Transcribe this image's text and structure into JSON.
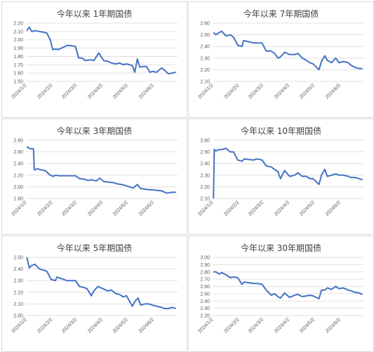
{
  "chart_data": [
    {
      "type": "line",
      "title": "今年以来 1年期国债",
      "x_tick_labels": [
        "2024/1/2",
        "2024/2/2",
        "2024/3/2",
        "2024/4/2",
        "2024/5/2",
        "2024/6/2"
      ],
      "y_tick_labels": [
        "1.50",
        "1.60",
        "1.70",
        "1.80",
        "1.90",
        "2.00",
        "2.10",
        "2.20"
      ],
      "ylim": [
        1.5,
        2.2
      ],
      "xlim": [
        "2024-01-01",
        "2024-06-30"
      ],
      "grid": true,
      "color": "#4472c4",
      "series": [
        {
          "x": [
            "2024-01-02",
            "2024-01-05",
            "2024-01-08",
            "2024-01-12",
            "2024-01-17",
            "2024-01-22",
            "2024-01-26",
            "2024-01-30",
            "2024-02-02",
            "2024-02-06",
            "2024-02-08",
            "2024-02-19",
            "2024-02-23",
            "2024-02-29",
            "2024-03-04",
            "2024-03-08",
            "2024-03-12",
            "2024-03-18",
            "2024-03-22",
            "2024-03-28",
            "2024-04-03",
            "2024-04-08",
            "2024-04-12",
            "2024-04-17",
            "2024-04-22",
            "2024-04-26",
            "2024-04-30",
            "2024-05-07",
            "2024-05-10",
            "2024-05-13",
            "2024-05-16",
            "2024-05-20",
            "2024-05-24",
            "2024-05-28",
            "2024-05-31",
            "2024-06-05",
            "2024-06-11",
            "2024-06-14",
            "2024-06-19",
            "2024-06-24",
            "2024-06-28"
          ],
          "y": [
            2.11,
            2.15,
            2.1,
            2.11,
            2.1,
            2.09,
            2.08,
            2.0,
            1.88,
            1.89,
            1.88,
            1.93,
            1.93,
            1.92,
            1.78,
            1.78,
            1.75,
            1.76,
            1.75,
            1.84,
            1.75,
            1.74,
            1.72,
            1.71,
            1.72,
            1.7,
            1.71,
            1.69,
            1.61,
            1.77,
            1.67,
            1.68,
            1.68,
            1.61,
            1.62,
            1.61,
            1.66,
            1.64,
            1.59,
            1.6,
            1.61
          ]
        }
      ]
    },
    {
      "type": "line",
      "title": "今年以来 7年期国债",
      "x_tick_labels": [
        "2024/1/2",
        "2024/2/2",
        "2024/3/2",
        "2024/4/2",
        "2024/5/2",
        "2024/6/2"
      ],
      "y_tick_labels": [
        "2.10",
        "2.20",
        "2.30",
        "2.40",
        "2.50",
        "2.60"
      ],
      "ylim": [
        2.1,
        2.6
      ],
      "xlim": [
        "2024-01-01",
        "2024-06-30"
      ],
      "grid": true,
      "color": "#4472c4",
      "series": [
        {
          "x": [
            "2024-01-02",
            "2024-01-05",
            "2024-01-09",
            "2024-01-12",
            "2024-01-17",
            "2024-01-22",
            "2024-01-26",
            "2024-01-31",
            "2024-02-05",
            "2024-02-07",
            "2024-02-19",
            "2024-02-23",
            "2024-02-29",
            "2024-03-05",
            "2024-03-11",
            "2024-03-15",
            "2024-03-19",
            "2024-03-22",
            "2024-03-27",
            "2024-04-02",
            "2024-04-08",
            "2024-04-12",
            "2024-04-17",
            "2024-04-22",
            "2024-04-26",
            "2024-04-30",
            "2024-05-07",
            "2024-05-10",
            "2024-05-14",
            "2024-05-17",
            "2024-05-22",
            "2024-05-27",
            "2024-05-31",
            "2024-06-05",
            "2024-06-11",
            "2024-06-14",
            "2024-06-19",
            "2024-06-24",
            "2024-06-28"
          ],
          "y": [
            2.52,
            2.5,
            2.52,
            2.53,
            2.49,
            2.5,
            2.48,
            2.41,
            2.4,
            2.45,
            2.43,
            2.43,
            2.43,
            2.36,
            2.36,
            2.34,
            2.3,
            2.31,
            2.35,
            2.33,
            2.33,
            2.34,
            2.3,
            2.28,
            2.26,
            2.25,
            2.2,
            2.27,
            2.32,
            2.28,
            2.26,
            2.3,
            2.26,
            2.27,
            2.26,
            2.24,
            2.22,
            2.21,
            2.21
          ]
        }
      ]
    },
    {
      "type": "line",
      "title": "今年以来 3年期国债",
      "x_tick_labels": [
        "2024/1/2",
        "2024/2/2",
        "2024/3/2",
        "2024/4/2",
        "2024/5/2",
        "2024/6/2"
      ],
      "y_tick_labels": [
        "1.80",
        "2.00",
        "2.20",
        "2.40",
        "2.60",
        "2.80"
      ],
      "ylim": [
        1.8,
        2.8
      ],
      "xlim": [
        "2024-01-01",
        "2024-06-30"
      ],
      "grid": true,
      "color": "#4472c4",
      "series": [
        {
          "x": [
            "2024-01-02",
            "2024-01-05",
            "2024-01-10",
            "2024-01-11",
            "2024-01-15",
            "2024-01-19",
            "2024-01-24",
            "2024-01-29",
            "2024-02-02",
            "2024-02-06",
            "2024-02-09",
            "2024-02-19",
            "2024-02-23",
            "2024-02-29",
            "2024-03-05",
            "2024-03-11",
            "2024-03-15",
            "2024-03-20",
            "2024-03-25",
            "2024-03-29",
            "2024-04-03",
            "2024-04-09",
            "2024-04-15",
            "2024-04-19",
            "2024-04-24",
            "2024-04-29",
            "2024-05-08",
            "2024-05-13",
            "2024-05-17",
            "2024-05-22",
            "2024-05-27",
            "2024-05-31",
            "2024-06-05",
            "2024-06-11",
            "2024-06-17",
            "2024-06-21",
            "2024-06-26",
            "2024-06-28"
          ],
          "y": [
            2.69,
            2.66,
            2.65,
            2.29,
            2.31,
            2.29,
            2.28,
            2.21,
            2.18,
            2.2,
            2.19,
            2.19,
            2.19,
            2.19,
            2.14,
            2.13,
            2.11,
            2.12,
            2.1,
            2.15,
            2.09,
            2.08,
            2.07,
            2.05,
            2.04,
            2.02,
            1.98,
            2.04,
            1.97,
            1.96,
            1.95,
            1.95,
            1.94,
            1.93,
            1.89,
            1.9,
            1.91,
            1.9
          ]
        }
      ]
    },
    {
      "type": "line",
      "title": "今年以来 10年期国债",
      "x_tick_labels": [
        "2024/1/2",
        "2024/2/2",
        "2024/3/2",
        "2024/4/2",
        "2024/5/2",
        "2024/6/2"
      ],
      "y_tick_labels": [
        "2.10",
        "2.20",
        "2.30",
        "2.40",
        "2.50",
        "2.60"
      ],
      "ylim": [
        2.1,
        2.6
      ],
      "xlim": [
        "2024-01-01",
        "2024-06-30"
      ],
      "grid": true,
      "color": "#4472c4",
      "series": [
        {
          "x": [
            "2024-01-02",
            "2024-01-03",
            "2024-01-05",
            "2024-01-09",
            "2024-01-12",
            "2024-01-17",
            "2024-01-22",
            "2024-01-26",
            "2024-01-31",
            "2024-02-05",
            "2024-02-08",
            "2024-02-19",
            "2024-02-23",
            "2024-02-29",
            "2024-03-05",
            "2024-03-11",
            "2024-03-15",
            "2024-03-19",
            "2024-03-22",
            "2024-03-27",
            "2024-04-02",
            "2024-04-08",
            "2024-04-12",
            "2024-04-17",
            "2024-04-22",
            "2024-04-26",
            "2024-04-30",
            "2024-05-07",
            "2024-05-10",
            "2024-05-14",
            "2024-05-17",
            "2024-05-22",
            "2024-05-27",
            "2024-05-31",
            "2024-06-05",
            "2024-06-11",
            "2024-06-14",
            "2024-06-19",
            "2024-06-24",
            "2024-06-28"
          ],
          "y": [
            2.1,
            2.52,
            2.51,
            2.52,
            2.52,
            2.53,
            2.5,
            2.5,
            2.43,
            2.42,
            2.44,
            2.43,
            2.44,
            2.43,
            2.38,
            2.37,
            2.35,
            2.33,
            2.27,
            2.34,
            2.29,
            2.3,
            2.32,
            2.29,
            2.29,
            2.27,
            2.27,
            2.22,
            2.3,
            2.35,
            2.29,
            2.3,
            2.31,
            2.3,
            2.3,
            2.29,
            2.28,
            2.28,
            2.27,
            2.26
          ]
        }
      ]
    },
    {
      "type": "line",
      "title": "今年以来 5年期国债",
      "x_tick_labels": [
        "2024/1/2",
        "2024/2/2",
        "2024/3/2",
        "2024/4/2",
        "2024/5/2",
        "2024/6/2"
      ],
      "y_tick_labels": [
        "2.00",
        "2.10",
        "2.20",
        "2.30",
        "2.40",
        "2.50"
      ],
      "ylim": [
        2.0,
        2.5
      ],
      "xlim": [
        "2024-01-01",
        "2024-06-30"
      ],
      "grid": true,
      "color": "#4472c4",
      "series": [
        {
          "x": [
            "2024-01-02",
            "2024-01-05",
            "2024-01-08",
            "2024-01-12",
            "2024-01-17",
            "2024-01-22",
            "2024-01-26",
            "2024-01-31",
            "2024-02-05",
            "2024-02-07",
            "2024-02-19",
            "2024-02-23",
            "2024-02-29",
            "2024-03-05",
            "2024-03-11",
            "2024-03-14",
            "2024-03-19",
            "2024-03-22",
            "2024-03-27",
            "2024-04-02",
            "2024-04-08",
            "2024-04-12",
            "2024-04-17",
            "2024-04-22",
            "2024-04-26",
            "2024-04-30",
            "2024-05-07",
            "2024-05-10",
            "2024-05-14",
            "2024-05-17",
            "2024-05-22",
            "2024-05-27",
            "2024-05-31",
            "2024-06-05",
            "2024-06-11",
            "2024-06-14",
            "2024-06-19",
            "2024-06-24",
            "2024-06-28"
          ],
          "y": [
            2.5,
            2.41,
            2.43,
            2.44,
            2.4,
            2.39,
            2.38,
            2.31,
            2.3,
            2.33,
            2.3,
            2.3,
            2.3,
            2.25,
            2.24,
            2.23,
            2.17,
            2.21,
            2.25,
            2.23,
            2.21,
            2.22,
            2.19,
            2.18,
            2.16,
            2.17,
            2.08,
            2.12,
            2.15,
            2.09,
            2.1,
            2.1,
            2.09,
            2.08,
            2.07,
            2.06,
            2.06,
            2.07,
            2.06
          ]
        }
      ]
    },
    {
      "type": "line",
      "title": "今年以来 30年期国债",
      "x_tick_labels": [
        "2024/1/2",
        "2024/2/2",
        "2024/3/2",
        "2024/4/2",
        "2024/5/2",
        "2024/6/2"
      ],
      "y_tick_labels": [
        "2.20",
        "2.30",
        "2.40",
        "2.50",
        "2.60",
        "2.70",
        "2.80",
        "2.90",
        "3.00"
      ],
      "ylim": [
        2.2,
        3.0
      ],
      "xlim": [
        "2024-01-01",
        "2024-06-30"
      ],
      "grid": true,
      "color": "#4472c4",
      "series": [
        {
          "x": [
            "2024-01-02",
            "2024-01-05",
            "2024-01-09",
            "2024-01-12",
            "2024-01-17",
            "2024-01-22",
            "2024-01-26",
            "2024-01-31",
            "2024-02-05",
            "2024-02-08",
            "2024-02-19",
            "2024-02-23",
            "2024-02-29",
            "2024-03-05",
            "2024-03-11",
            "2024-03-15",
            "2024-03-19",
            "2024-03-22",
            "2024-03-27",
            "2024-04-02",
            "2024-04-08",
            "2024-04-12",
            "2024-04-17",
            "2024-04-22",
            "2024-04-26",
            "2024-04-30",
            "2024-05-07",
            "2024-05-10",
            "2024-05-14",
            "2024-05-17",
            "2024-05-22",
            "2024-05-27",
            "2024-05-31",
            "2024-06-05",
            "2024-06-11",
            "2024-06-14",
            "2024-06-19",
            "2024-06-24",
            "2024-06-28"
          ],
          "y": [
            2.8,
            2.8,
            2.77,
            2.79,
            2.76,
            2.72,
            2.73,
            2.72,
            2.63,
            2.66,
            2.64,
            2.64,
            2.63,
            2.55,
            2.48,
            2.5,
            2.46,
            2.44,
            2.51,
            2.45,
            2.48,
            2.49,
            2.46,
            2.47,
            2.48,
            2.47,
            2.43,
            2.55,
            2.55,
            2.58,
            2.56,
            2.6,
            2.57,
            2.58,
            2.55,
            2.54,
            2.52,
            2.51,
            2.49
          ]
        }
      ]
    }
  ]
}
